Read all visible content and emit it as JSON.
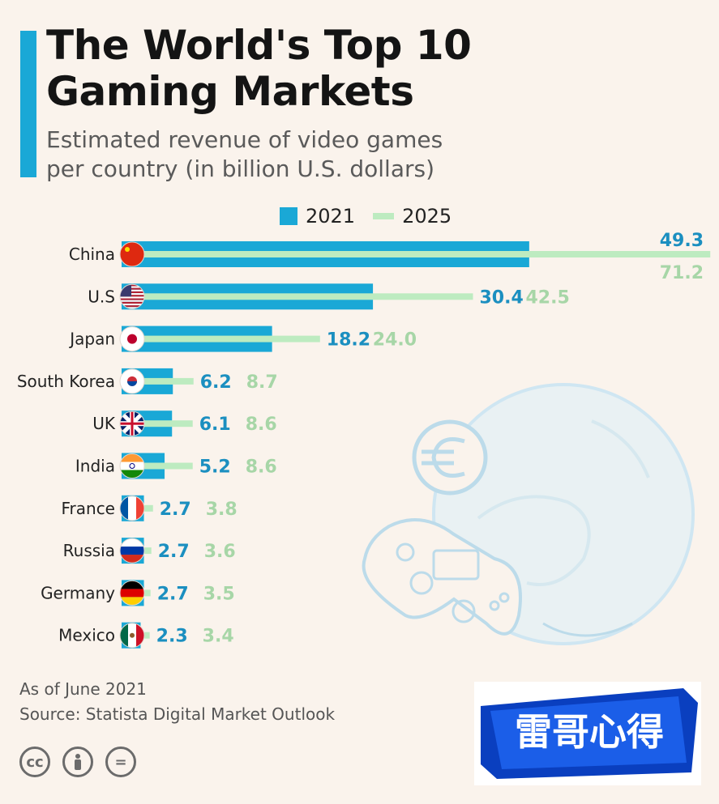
{
  "header": {
    "title_line1": "The World's Top 10",
    "title_line2": "Gaming Markets",
    "subtitle_line1": "Estimated revenue of video games",
    "subtitle_line2": "per country (in billion U.S. dollars)"
  },
  "legend": {
    "label_2021": "2021",
    "label_2025": "2025"
  },
  "colors": {
    "series_2021": "#1aa8d6",
    "series_2025": "#bdebc0",
    "value_2021": "#1b8fc0",
    "value_2025": "#a7d6a7",
    "background": "#faf3ec"
  },
  "chart_data": {
    "type": "bar",
    "orientation": "horizontal",
    "title": "The World's Top 10 Gaming Markets",
    "subtitle": "Estimated revenue of video games per country (in billion U.S. dollars)",
    "categories": [
      "China",
      "U.S",
      "Japan",
      "South Korea",
      "UK",
      "India",
      "France",
      "Russia",
      "Germany",
      "Mexico"
    ],
    "series": [
      {
        "name": "2021",
        "values": [
          49.3,
          30.4,
          18.2,
          6.2,
          6.1,
          5.2,
          2.7,
          2.7,
          2.7,
          2.3
        ],
        "labels": [
          "49.3",
          "30.4",
          "18.2",
          "6.2",
          "6.1",
          "5.2",
          "2.7",
          "2.7",
          "2.7",
          "2.3"
        ]
      },
      {
        "name": "2025",
        "values": [
          71.2,
          42.5,
          24.0,
          8.7,
          8.6,
          8.6,
          3.8,
          3.6,
          3.5,
          3.4
        ],
        "labels": [
          "71.2",
          "42.5",
          "24.0",
          "8.7",
          "8.6",
          "8.6",
          "3.8",
          "3.6",
          "3.5",
          "3.4"
        ]
      }
    ],
    "legend": "top",
    "grid": false
  },
  "footer": {
    "note": "As of June 2021",
    "source": "Source: Statista Digital Market Outlook",
    "license_icons": [
      "cc-icon",
      "by-person-icon",
      "nd-equals-icon"
    ]
  },
  "watermark": {
    "text": "雷哥心得"
  }
}
